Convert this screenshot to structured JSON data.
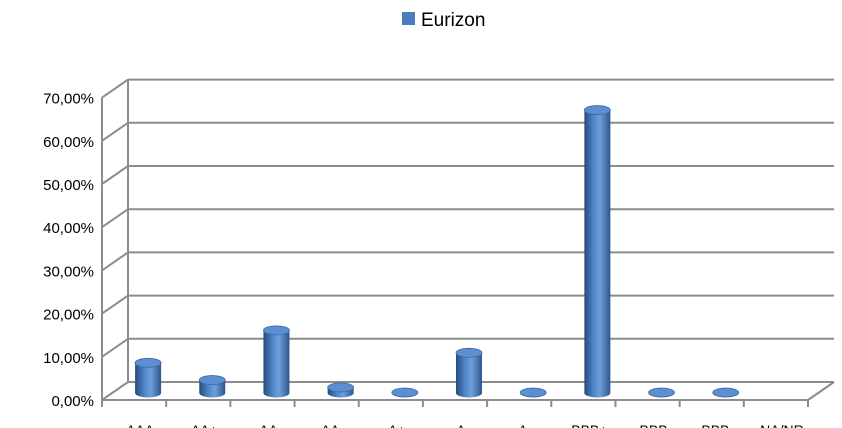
{
  "chart_data": {
    "type": "bar",
    "style": "3d-cylinder",
    "legend": {
      "position": "top-center",
      "entries": [
        "Eurizon"
      ]
    },
    "categories": [
      "AAA",
      "AA+",
      "AA",
      "AA-",
      "A+",
      "A",
      "A-",
      "BBB+",
      "BBB",
      "BBB-",
      "NA/NR"
    ],
    "series": [
      {
        "name": "Eurizon",
        "color": "#4a7ebb",
        "values": [
          7.0,
          3.0,
          14.5,
          1.3,
          0.1,
          9.3,
          0.1,
          65.5,
          0.1,
          0.1,
          0
        ]
      }
    ],
    "yticks": [
      "0,00%",
      "10,00%",
      "20,00%",
      "30,00%",
      "40,00%",
      "50,00%",
      "60,00%",
      "70,00%"
    ],
    "ylim": [
      0,
      70
    ],
    "grid": true
  }
}
